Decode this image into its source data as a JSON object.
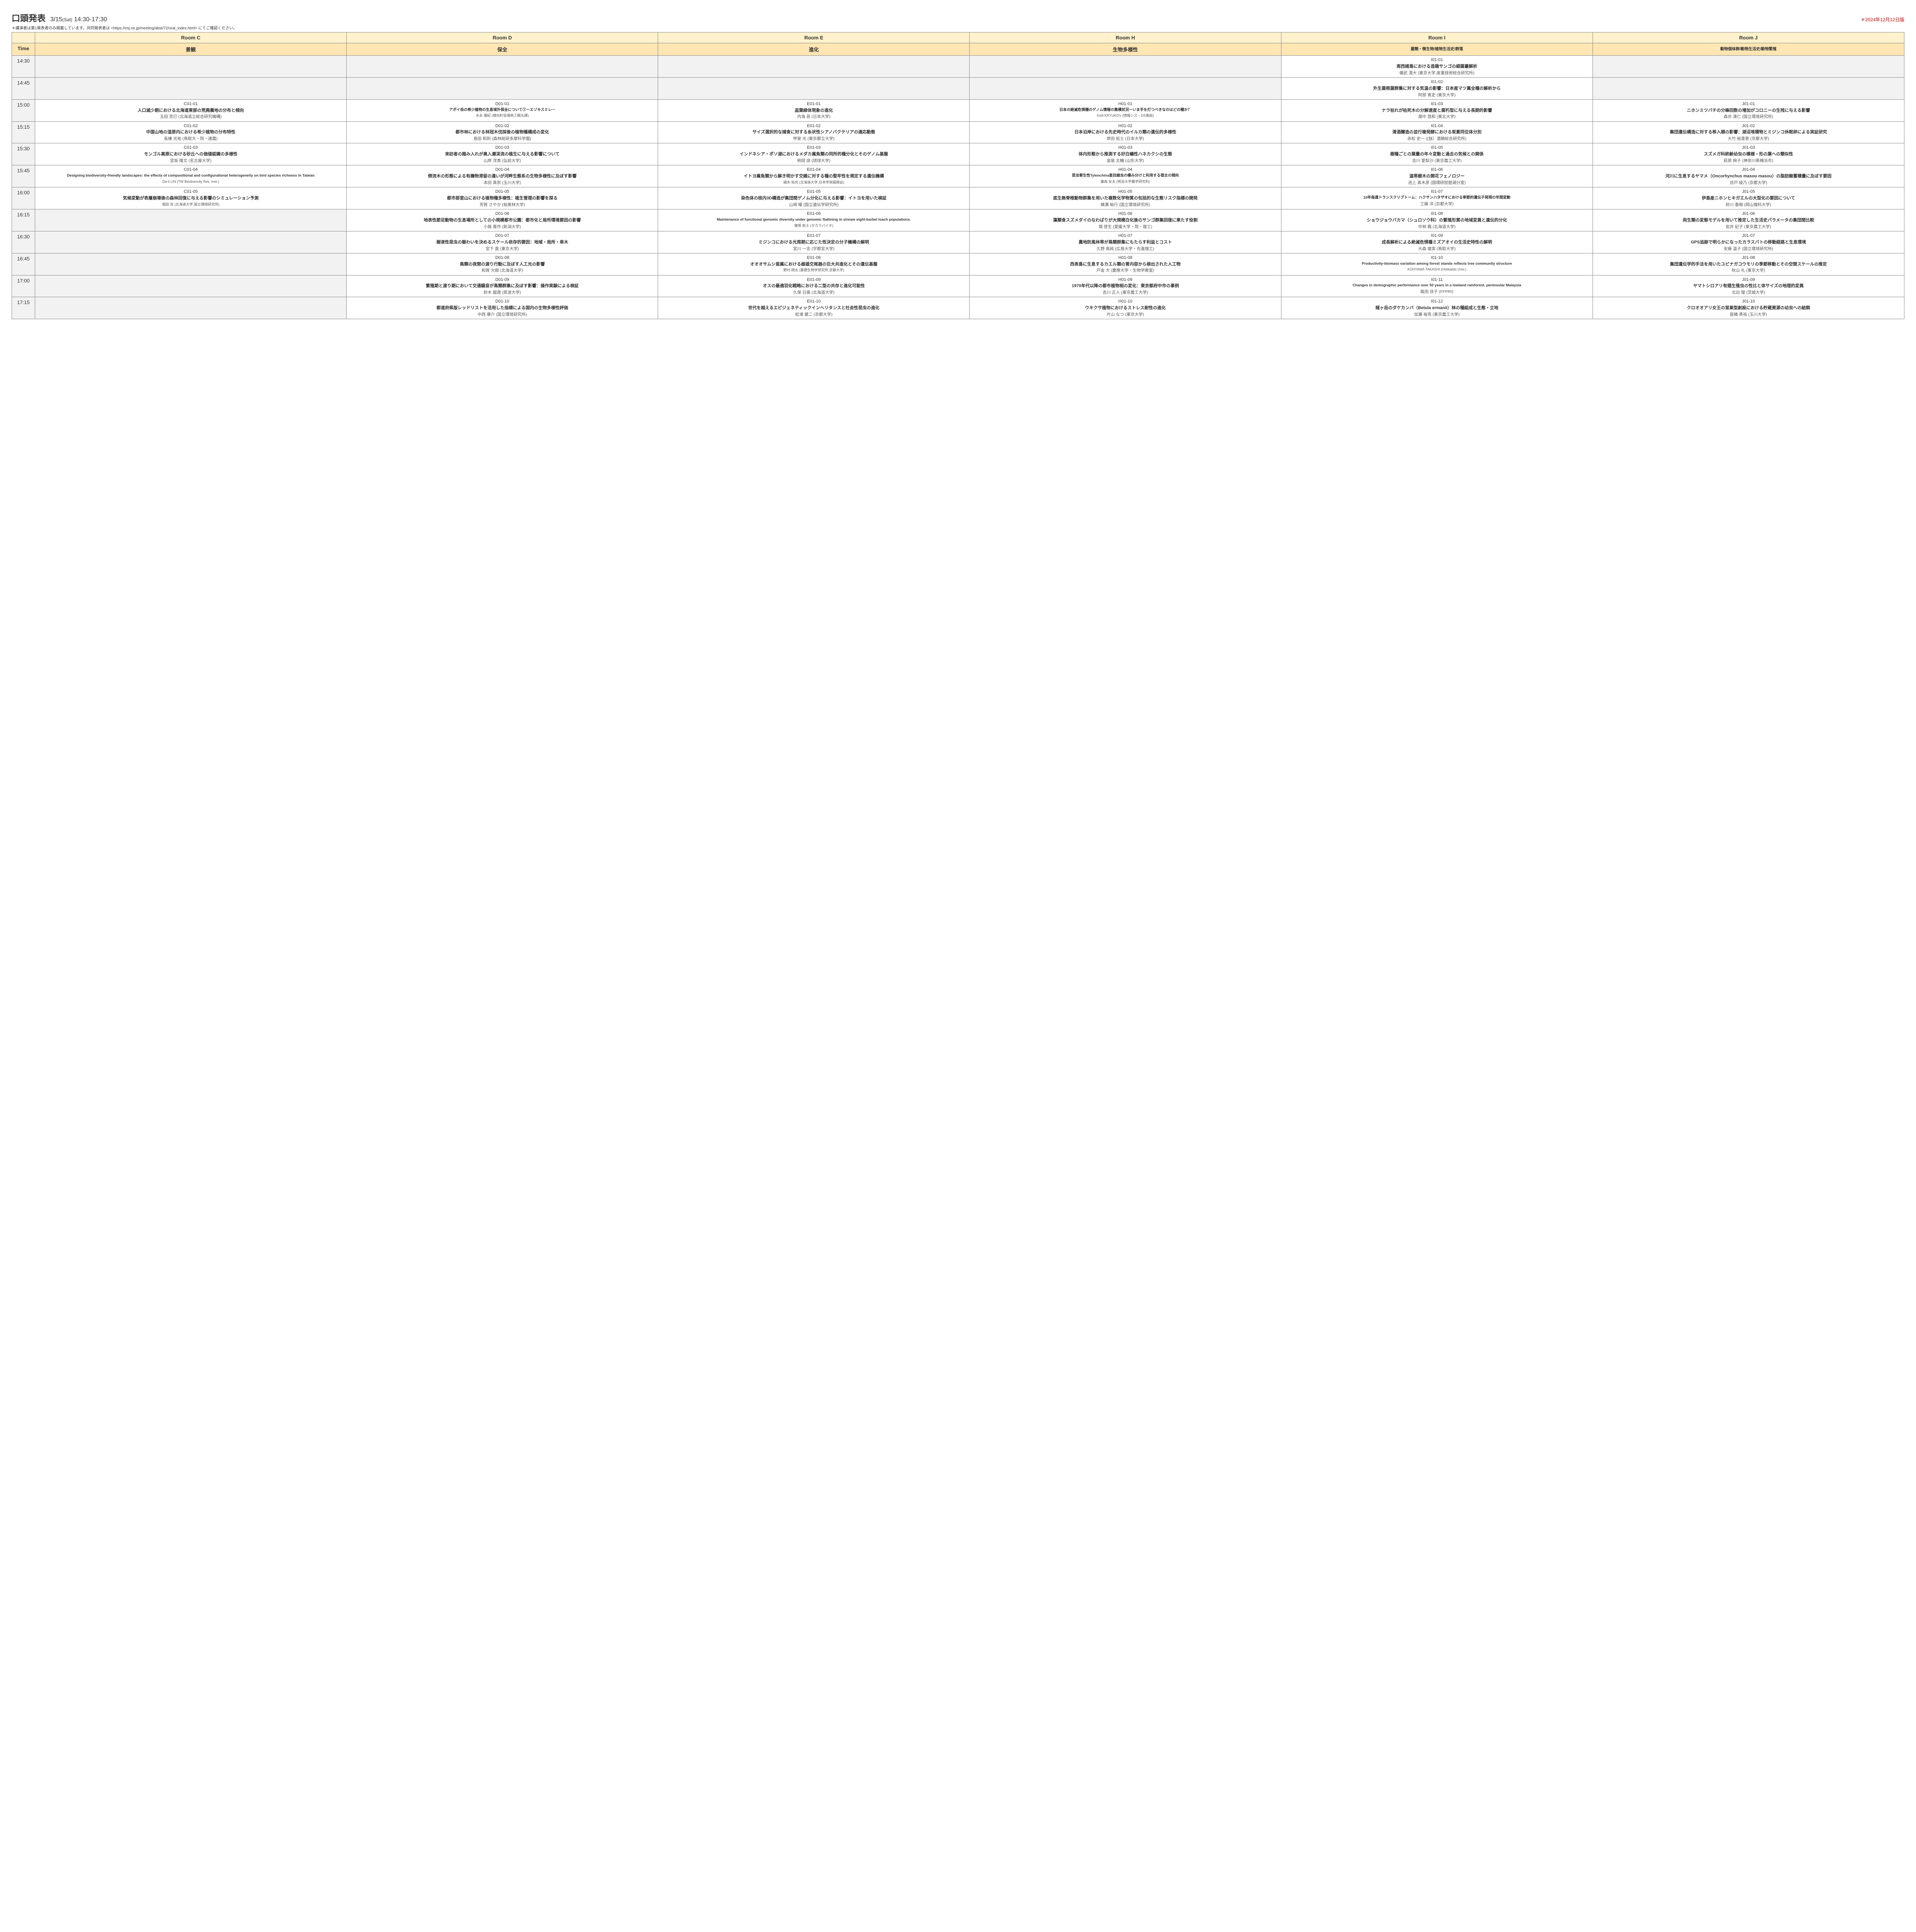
{
  "header": {
    "main_title": "口頭発表",
    "date": "3/15",
    "day": "(Sat)",
    "time_range": "14:30-17:30",
    "version": "＊2024年12月12日版",
    "note": "＊講演者は第1発表者のみ掲載しています。共同発表者は <https://esj.ne.jp/meeting/abst/72/oral_index.html> にてご確認ください。"
  },
  "colors": {
    "room_header_bg": "#fff2cc",
    "category_header_bg": "#ffe6b3",
    "time_cell_bg": "#f2f2f2",
    "border": "#888888",
    "version_text": "#cc0000"
  },
  "rooms": [
    "Room C",
    "Room D",
    "Room E",
    "Room H",
    "Room I",
    "Room J"
  ],
  "categories": [
    "景観",
    "保全",
    "進化",
    "生物多様性",
    "菌類・微生物/植物生活史/群落",
    "動物個体群/動物生活史/動物繁殖"
  ],
  "times": [
    "14:30",
    "14:45",
    "15:00",
    "15:15",
    "15:30",
    "15:45",
    "16:00",
    "16:15",
    "16:30",
    "16:45",
    "17:00",
    "17:15"
  ],
  "sessions": {
    "14:30": {
      "I": {
        "id": "I01-01",
        "title": "南西諸島における造礁サンゴの細菌叢解析",
        "presenter": "儀武 滉大 (東京大学,産業技術総合研究所)"
      }
    },
    "14:45": {
      "I": {
        "id": "I01-02",
        "title": "外生菌根菌群集に対する気温の影響：日本産マツ属全種の解析から",
        "presenter": "阿部 寛史 (東京大学)"
      }
    },
    "15:00": {
      "C": {
        "id": "C01-01",
        "title": "人口減少期における北海道東部の荒廃農地の分布と傾向",
        "presenter": "玉田 克巳 (北海道立総合研究機構)"
      },
      "D": {
        "id": "D01-01",
        "title": "アポイ岳の希少植物の生息域外保全について①－エゾキスミレ－",
        "title_small": true,
        "presenter": "水永 優紀 (様似町役場商工観光課)",
        "presenter_small": true
      },
      "E": {
        "id": "E01-01",
        "title": "盗葉緑体現象の進化",
        "presenter": "内海 邑 (日本大学)"
      },
      "H": {
        "id": "H01-01",
        "title": "日本の絶滅危惧種のゲノム情報の集積状況ーいま手を打つべきなのはどの種か？",
        "title_small": true,
        "presenter": "Kirill KRYUKOV (情報シス・DS施設)",
        "presenter_small": true
      },
      "I": {
        "id": "I01-03",
        "title": "ナラ枯れが枯死木の分解速度と腐朽型に与える長期的影響",
        "presenter": "畑中 悠和 (東北大学)"
      },
      "J": {
        "id": "J01-01",
        "title": "ニホンミツバチの分蜂回数の増加がコロニーの生残に与える影響",
        "presenter": "森井 清仁 (国立環境研究所)"
      }
    },
    "15:15": {
      "C": {
        "id": "C01-02",
        "title": "中国山地の湿原内における希少植物の分布特性",
        "presenter": "長棟 光祐 (鳥取大・院・連農)"
      },
      "D": {
        "id": "D01-02",
        "title": "都市林における林冠木伐採後の植物種構成の変化",
        "presenter": "島田 和則 (森林総研多摩科学園)"
      },
      "E": {
        "id": "E01-02",
        "title": "サイズ選択的な捕食に対する糸状性シアノバクテリアの適応動態",
        "presenter": "甲斐 光 (東京都立大学)"
      },
      "H": {
        "id": "H01-02",
        "title": "日本沿岸における先史時代のイルカ類の遺伝的多様性",
        "presenter": "岸田 拓士 (日本大学)"
      },
      "I": {
        "id": "I01-04",
        "title": "清酒醸造の並行複発酵における炭素同位体分別",
        "presenter": "赤松 史一 ((独）酒類総合研究所)"
      },
      "J": {
        "id": "J01-02",
        "title": "集団遺伝構造に対する移入順の影響：湖沼堆積物とミジンコ休眠卵による実証研究",
        "presenter": "大竹 裕里恵 (京都大学)"
      }
    },
    "15:30": {
      "C": {
        "id": "C01-03",
        "title": "モンゴル高原における砂丘への価値認識の多様性",
        "presenter": "宮坂 隆文 (名古屋大学)"
      },
      "D": {
        "id": "D01-03",
        "title": "来訪者の踏み入れが奥入瀬渓流の植生に与える影響について",
        "presenter": "山岸 洋貴 (弘前大学)"
      },
      "E": {
        "id": "E01-03",
        "title": "インドネシア・ポソ湖におけるメダカ属魚類の同所的種分化とそのゲノム基盤",
        "presenter": "柿岡 諒 (琉球大学)"
      },
      "H": {
        "id": "H01-03",
        "title": "体内形態から推測する好白蟻性ハネカクシの生態",
        "presenter": "金尾 太輔 (山形大学)"
      },
      "I": {
        "id": "I01-05",
        "title": "樹種ごとの葉量の年々変動と過去の気候との関係",
        "presenter": "吉川 愛梨沙 (東京農工大学)"
      },
      "J": {
        "id": "J01-03",
        "title": "スズメガ科終齢幼虫の模様・形の葉への類似性",
        "presenter": "萩原 絢子 (神奈川県横浜市)"
      }
    },
    "15:45": {
      "C": {
        "id": "C01-04",
        "title": "Designing biodiversity-friendly landscapes: the effects of compositional and configurational heterogeneity on bird species richness in Taiwan",
        "title_en": true,
        "presenter": "Da-li LIN (TW Biodiversity Res. Inst.)",
        "presenter_small": true
      },
      "D": {
        "id": "D01-04",
        "title": "倒流木の形態による有機物滞留の違いが河畔生態系の生物多様性に及ぼす影響",
        "presenter": "本田 真奈 (玉川大学)"
      },
      "E": {
        "id": "E01-04",
        "title": "イトヨ属魚類から解き明かす交雑に対する種の堅牢性を規定する遺伝機構",
        "presenter": "細木 拓也 (北海道大学,日本学術振興会)",
        "presenter_small": true
      },
      "H": {
        "id": "H01-04",
        "title": "昆虫寄生性Tylenchina亜目線虫の棲み分けと利用する宿主の傾向",
        "title_small": true,
        "presenter": "藤森 友太 (明治大学農学研究科)",
        "presenter_small": true
      },
      "I": {
        "id": "I01-06",
        "title": "温帯樹木の開花フェノロジー",
        "presenter": "池上 真木彦 (国環研琵琶湖分室)"
      },
      "J": {
        "id": "J01-04",
        "title": "河川に生息するヤマメ（Oncorhynchus masou masou）の脂肪酸蓄積量に及ぼす要因",
        "title_mixed": true,
        "presenter": "目戸 綾乃 (京都大学)"
      }
    },
    "16:00": {
      "C": {
        "id": "C01-05",
        "title": "気候変動が表層崩壊後の森林回復に与える影響のシミュレーション予測",
        "presenter": "堀田 亘 (北海道大学,国立環境研究所)",
        "presenter_small": true
      },
      "D": {
        "id": "D01-05",
        "title": "都市部里山における植物種多様性：植生管理の影響を探る",
        "presenter": "芳賀 さやか (桜美林大学)"
      },
      "E": {
        "id": "E01-05",
        "title": "染色体の核内3D構造が集団間ゲノム分化に与える影響：イトヨを用いた検証",
        "presenter": "山﨑 曜 (国立遺伝学研究所)"
      },
      "H": {
        "id": "H01-05",
        "title": "底生無脊椎動物群集を用いた複数化学物質の包括的な生態リスク指標の開発",
        "presenter": "横溝 裕行 (国立環境研究所)"
      },
      "I": {
        "id": "I01-07",
        "title": "10年毎週トランスクリプトーム：ハクサンハタザオにおける季節的遺伝子発現の年間変動",
        "title_small": true,
        "presenter": "工藤 洋 (京都大学)"
      },
      "J": {
        "id": "J01-05",
        "title": "伊島産ニホンヒキガエルの大型化の要因について",
        "presenter": "鈴川 春樹 (岡山理科大学)"
      }
    },
    "16:15": {
      "D": {
        "id": "D01-06",
        "title": "地表性節足動物の生息場所としての小規模都市公園：都市化と局所環境要因の影響",
        "presenter": "小路 晋作 (新潟大学)"
      },
      "E": {
        "id": "E01-06",
        "title": "Maintenance of functional genomic diversity under genomic flatlining in stream eight-barbel loach populations.",
        "title_en": true,
        "presenter": "猪塚 彬士 (タカラバイオ)",
        "presenter_small": true
      },
      "H": {
        "id": "H01-06",
        "title": "藻類食スズメダイのなわばりが大規模白化後のサンゴ群集回復に果たす役割",
        "presenter": "畑 啓生 (愛媛大学・院・理工)"
      },
      "I": {
        "id": "I01-08",
        "title": "ショウジョウバカマ（シュロソウ科）の繁殖形質の地域変異と遺伝的分化",
        "presenter": "中林 楓 (北海道大学)"
      },
      "J": {
        "id": "J01-06",
        "title": "両生類の変態モデルを用いて推定した生活史パラメータの集団間比較",
        "presenter": "岩井 紀子 (東京農工大学)"
      }
    },
    "16:30": {
      "D": {
        "id": "D01-07",
        "title": "樹液性昆虫の賑わいを決めるスケール依存的要因：地域・局所・単木",
        "presenter": "宮下 直 (東京大学)"
      },
      "E": {
        "id": "E01-07",
        "title": "ミジンコにおける光周期に応じた性決定の分子機構の解明",
        "presenter": "宮川 一志 (宇都宮大学)"
      },
      "H": {
        "id": "H01-07",
        "title": "農地防風林帯が鳥類群集にもたらす利益とコスト",
        "presenter": "久野 真純 (広島大学・先進理工)"
      },
      "I": {
        "id": "I01-09",
        "title": "成長解析による絶滅危惧種ミズアオイの生活史特性の解明",
        "presenter": "大森 雄実 (鳥取大学)"
      },
      "J": {
        "id": "J01-07",
        "title": "GPS追跡で明らかになったカラスバトの移動経路と生息環境",
        "presenter": "安藤 温子 (国立環境研究所)"
      }
    },
    "16:45": {
      "D": {
        "id": "D01-08",
        "title": "鳥類の夜間の渡り行動に及ぼす人工光の影響",
        "presenter": "和賀 大樹 (北海道大学)"
      },
      "E": {
        "id": "E01-08",
        "title": "オオオサムシ亜属における雌雄交尾器の巨大共進化とその遺伝基盤",
        "presenter": "野村 翔太 (基礎生物学研究所,京都大学)",
        "presenter_small": true
      },
      "H": {
        "id": "H01-08",
        "title": "西表島に生息するカエル類の胃内容から検出された人工物",
        "presenter": "戸金 大 (慶應大学・生物学教室)"
      },
      "I": {
        "id": "I01-10",
        "title": "Productivity-biomass variation among forest stands reflects tree community structure",
        "title_en": true,
        "presenter": "KOHYAMA TAKASHI (Hokkaido Univ.)",
        "presenter_small": true
      },
      "J": {
        "id": "J01-08",
        "title": "集団遺伝学的手法を用いたユビナガコウモリの季節移動とその空間スケールの推定",
        "presenter": "秋山 礼 (東京大学)"
      }
    },
    "17:00": {
      "D": {
        "id": "D01-09",
        "title": "繁殖期と渡り期において交通騒音が鳥類群集に及ぼす影響：操作実験による検証",
        "presenter": "鈴木 龍晟 (筑波大学)"
      },
      "E": {
        "id": "E01-09",
        "title": "オスの最適羽化戦略における二型の共存と進化可能性",
        "presenter": "久保 日嵩 (北海道大学)"
      },
      "H": {
        "id": "H01-09",
        "title": "1970年代以降の都市植物相の変化：東京都府中市の事例",
        "presenter": "吉川 正人 (東京農工大学)"
      },
      "I": {
        "id": "I01-11",
        "title": "Changes in demographic performance over 50 years in a lowland rainforest, peninsular Malaysia",
        "title_en": true,
        "presenter": "飯田 佳子 (FFPRI)"
      },
      "J": {
        "id": "J01-09",
        "title": "ヤマトシロアリ有翅生殖虫の性比と体サイズの地理的変異",
        "presenter": "北出 理 (茨城大学)"
      }
    },
    "17:15": {
      "D": {
        "id": "D01-10",
        "title": "都道府県版レッドリストを活用した指標による国内の生物多様性評価",
        "presenter": "中西 康介 (国立環境研究所)"
      },
      "E": {
        "id": "E01-10",
        "title": "世代を越えるエピジェネティックインヘリタンスと社会性昆虫の進化",
        "presenter": "松浦 健二 (京都大学)"
      },
      "H": {
        "id": "H01-10",
        "title": "ウキクサ植物におけるストレス耐性の進化",
        "presenter": "片山 なつ (東京大学)"
      },
      "I": {
        "id": "I01-12",
        "title": "燧ヶ岳のダケカンバ（Betula ermanii）林の種組成と生態・立地",
        "title_mixed": true,
        "presenter": "加瀬 裕亮 (東京農工大学)"
      },
      "J": {
        "id": "J01-10",
        "title": "クロオオアリ女王の営巣型創設における貯蔵資源の幼虫への給餌",
        "presenter": "居橋 勇祐 (玉川大学)"
      }
    }
  }
}
